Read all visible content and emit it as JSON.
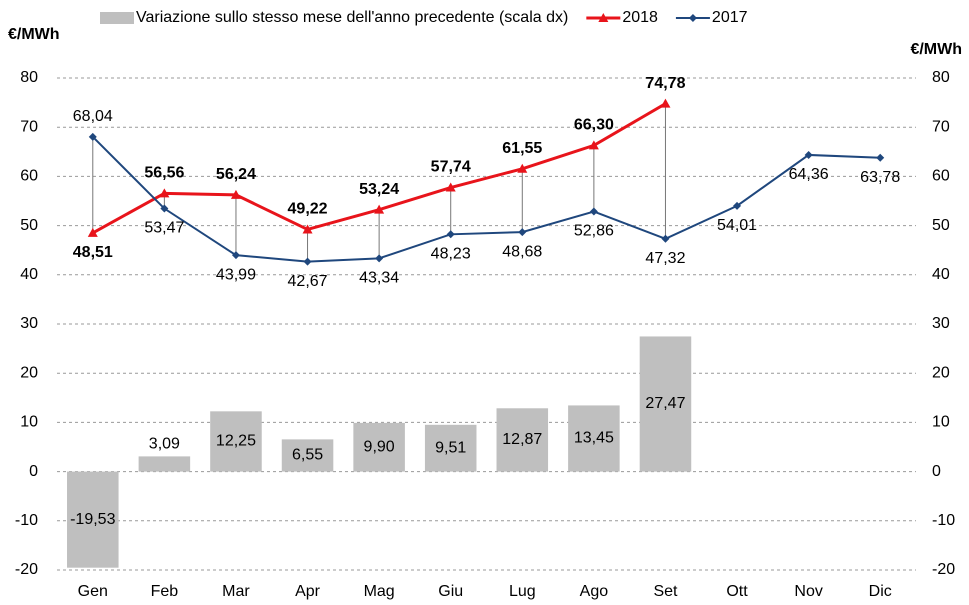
{
  "chart_data": {
    "type": "bar-line",
    "ylabel": "€/MWh",
    "y2label": "€/MWh",
    "categories": [
      "Gen",
      "Feb",
      "Mar",
      "Apr",
      "Mag",
      "Giu",
      "Lug",
      "Ago",
      "Set",
      "Ott",
      "Nov",
      "Dic"
    ],
    "ylim": [
      -20,
      80
    ],
    "yticks": [
      -20,
      -10,
      0,
      10,
      20,
      30,
      40,
      50,
      60,
      70,
      80
    ],
    "y2lim": [
      -20,
      80
    ],
    "y2ticks": [
      -20,
      -10,
      0,
      10,
      20,
      30,
      40,
      50,
      60,
      70,
      80
    ],
    "grid": true,
    "series": [
      {
        "name": "Variazione sullo stesso mese dell'anno precedente (scala dx)",
        "type": "bar",
        "axis": "y2",
        "color": "#bfbfbf",
        "label_color": "#000000",
        "values": [
          -19.53,
          3.09,
          12.25,
          6.55,
          9.9,
          9.51,
          12.87,
          13.45,
          27.47,
          null,
          null,
          null
        ],
        "value_labels": [
          "-19,53",
          "3,09",
          "12,25",
          "6,55",
          "9,90",
          "9,51",
          "12,87",
          "13,45",
          "27,47",
          null,
          null,
          null
        ]
      },
      {
        "name": "2018",
        "type": "line",
        "color": "#e8141b",
        "label_color": "#e8141b",
        "marker": "triangle",
        "values": [
          48.51,
          56.56,
          56.24,
          49.22,
          53.24,
          57.74,
          61.55,
          66.3,
          74.78,
          null,
          null,
          null
        ],
        "value_labels": [
          "48,51",
          "56,56",
          "56,24",
          "49,22",
          "53,24",
          "57,74",
          "61,55",
          "66,30",
          "74,78",
          null,
          null,
          null
        ]
      },
      {
        "name": "2017",
        "type": "line",
        "color": "#1f477d",
        "label_color": "#2222dd",
        "marker": "diamond",
        "values": [
          68.04,
          53.47,
          43.99,
          42.67,
          43.34,
          48.23,
          48.68,
          52.86,
          47.32,
          54.01,
          64.36,
          63.78
        ],
        "value_labels": [
          "68,04",
          "53,47",
          "43,99",
          "42,67",
          "43,34",
          "48,23",
          "48,68",
          "52,86",
          "47,32",
          "54,01",
          "64,36",
          "63,78"
        ]
      }
    ]
  }
}
